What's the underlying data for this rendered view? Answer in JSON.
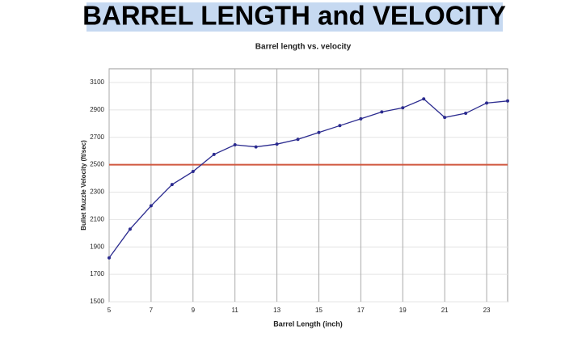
{
  "heading": "BARREL LENGTH and VELOCITY",
  "chart_data": {
    "type": "line",
    "title": "Barrel length vs. velocity",
    "x_label": "Barrel Length (inch)",
    "y_label": "Bullet Muzzle Velocity (ft/sec)",
    "x": [
      5,
      6,
      7,
      8,
      9,
      10,
      11,
      12,
      13,
      14,
      15,
      16,
      17,
      18,
      19,
      20,
      21,
      22,
      23,
      24
    ],
    "series": [
      {
        "name": "Velocity",
        "color": "#2b2b8f",
        "values": [
          1820,
          2030,
          2200,
          2355,
          2450,
          2575,
          2645,
          2630,
          2650,
          2685,
          2735,
          2785,
          2835,
          2885,
          2915,
          2980,
          2845,
          2875,
          2950,
          2965
        ]
      }
    ],
    "reference_line": 2500,
    "reference_color": "#d0573f",
    "xlim": [
      5,
      24
    ],
    "xticks": [
      5,
      7,
      9,
      11,
      13,
      15,
      17,
      19,
      21,
      23
    ],
    "ylim": [
      1500,
      3200
    ],
    "yticks": [
      1500,
      1700,
      1900,
      2100,
      2300,
      2500,
      2700,
      2900,
      3100
    ],
    "grid": true
  }
}
